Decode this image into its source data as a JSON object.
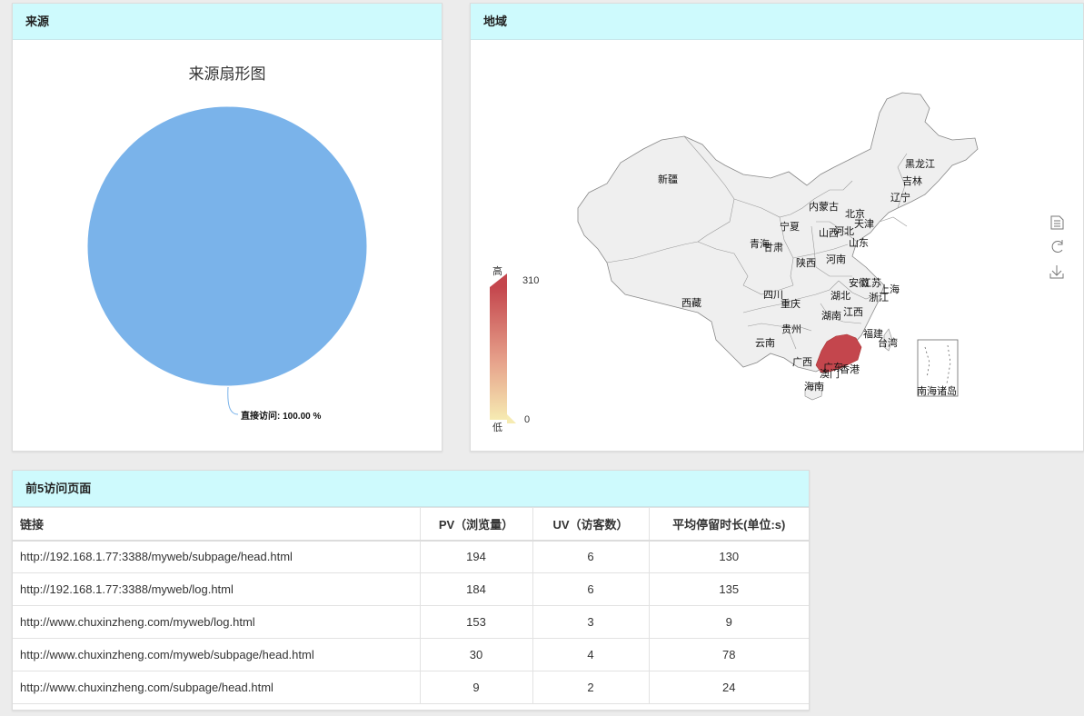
{
  "source_panel": {
    "title": "来源",
    "chart_title": "来源扇形图",
    "slice_label": "直接访问: 100.00 %"
  },
  "chart_data": {
    "type": "pie",
    "title": "来源扇形图",
    "categories": [
      "直接访问"
    ],
    "values": [
      100.0
    ],
    "colors": [
      "#7ab3ea"
    ]
  },
  "region_panel": {
    "title": "地域",
    "legend": {
      "high_label": "高",
      "low_label": "低",
      "max": 310,
      "min": 0,
      "color_high": "#c4464d",
      "color_low": "#f6ebb2"
    },
    "provinces": [
      "新疆",
      "西藏",
      "青海",
      "甘肃",
      "宁夏",
      "内蒙古",
      "黑龙江",
      "吉林",
      "辽宁",
      "北京",
      "天津",
      "河北",
      "山西",
      "陕西",
      "山东",
      "河南",
      "四川",
      "重庆",
      "湖北",
      "安徽",
      "江苏",
      "上海",
      "浙江",
      "湖南",
      "江西",
      "贵州",
      "云南",
      "福建",
      "台湾",
      "广西",
      "广东",
      "香港",
      "澳门",
      "海南"
    ],
    "island_label": "南海诸岛",
    "highlight_province": "广东",
    "tools": [
      "data-view-icon",
      "refresh-icon",
      "download-icon"
    ]
  },
  "top5_panel": {
    "title": "前5访问页面",
    "headers": [
      "链接",
      "PV（浏览量）",
      "UV（访客数）",
      "平均停留时长(单位:s)"
    ],
    "rows": [
      {
        "url": "http://192.168.1.77:3388/myweb/subpage/head.html",
        "pv": "194",
        "uv": "6",
        "stay": "130"
      },
      {
        "url": "http://192.168.1.77:3388/myweb/log.html",
        "pv": "184",
        "uv": "6",
        "stay": "135"
      },
      {
        "url": "http://www.chuxinzheng.com/myweb/log.html",
        "pv": "153",
        "uv": "3",
        "stay": "9"
      },
      {
        "url": "http://www.chuxinzheng.com/myweb/subpage/head.html",
        "pv": "30",
        "uv": "4",
        "stay": "78"
      },
      {
        "url": "http://www.chuxinzheng.com/subpage/head.html",
        "pv": "9",
        "uv": "2",
        "stay": "24"
      }
    ]
  }
}
